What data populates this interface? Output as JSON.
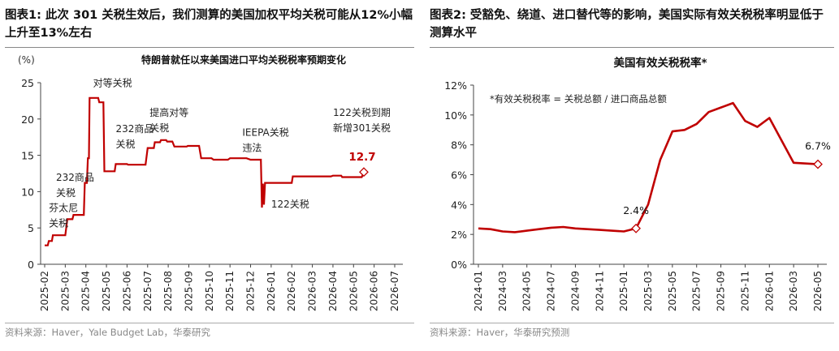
{
  "left": {
    "fig_title": "图表1:  此次 301 关税生效后，我们测算的美国加权平均关税可能从12%小幅上升至13%左右",
    "source": "资料来源：Haver，Yale Budget Lab，华泰研究",
    "chart_data": {
      "type": "line",
      "title": "特朗普就任以来美国进口平均关税税率预期变化",
      "ylabel": "(%)",
      "ylim": [
        0,
        25
      ],
      "yticks": [
        0,
        5,
        10,
        15,
        20,
        25
      ],
      "x_categories": [
        "2025-02",
        "2025-03",
        "2025-04",
        "2025-05",
        "2025-06",
        "2025-07",
        "2025-08",
        "2025-09",
        "2025-10",
        "2025-11",
        "2025-12",
        "2026-01",
        "2026-02",
        "2026-03",
        "2026-04",
        "2026-05",
        "2026-06",
        "2026-07"
      ],
      "series": [
        {
          "color": "#c00000",
          "points": [
            [
              0,
              2.6
            ],
            [
              0.15,
              2.6
            ],
            [
              0.2,
              3.2
            ],
            [
              0.35,
              3.2
            ],
            [
              0.4,
              4.0
            ],
            [
              1.0,
              4.0
            ],
            [
              1.1,
              6.2
            ],
            [
              1.35,
              6.2
            ],
            [
              1.4,
              6.8
            ],
            [
              1.9,
              6.8
            ],
            [
              1.95,
              11.2
            ],
            [
              2.05,
              11.2
            ],
            [
              2.1,
              14.6
            ],
            [
              2.15,
              14.6
            ],
            [
              2.18,
              22.9
            ],
            [
              2.6,
              22.9
            ],
            [
              2.65,
              22.3
            ],
            [
              2.85,
              22.3
            ],
            [
              2.9,
              12.8
            ],
            [
              3.4,
              12.8
            ],
            [
              3.45,
              13.8
            ],
            [
              4.0,
              13.8
            ],
            [
              4.05,
              13.7
            ],
            [
              4.9,
              13.7
            ],
            [
              5.0,
              16.0
            ],
            [
              5.3,
              16.0
            ],
            [
              5.35,
              16.8
            ],
            [
              5.6,
              16.8
            ],
            [
              5.65,
              17.1
            ],
            [
              5.9,
              17.1
            ],
            [
              5.95,
              16.9
            ],
            [
              6.2,
              16.9
            ],
            [
              6.3,
              16.2
            ],
            [
              6.9,
              16.2
            ],
            [
              6.95,
              16.3
            ],
            [
              7.5,
              16.3
            ],
            [
              7.6,
              14.6
            ],
            [
              8.1,
              14.6
            ],
            [
              8.2,
              14.4
            ],
            [
              8.9,
              14.4
            ],
            [
              9.0,
              14.6
            ],
            [
              9.8,
              14.6
            ],
            [
              10.0,
              14.4
            ],
            [
              10.5,
              14.4
            ],
            [
              10.55,
              7.8
            ],
            [
              10.6,
              11.1
            ],
            [
              10.65,
              8.2
            ],
            [
              10.7,
              11.2
            ],
            [
              12.0,
              11.2
            ],
            [
              12.05,
              12.1
            ],
            [
              13.9,
              12.1
            ],
            [
              14.0,
              12.2
            ],
            [
              14.4,
              12.2
            ],
            [
              14.45,
              12.0
            ],
            [
              15.4,
              12.0
            ],
            [
              15.5,
              12.7
            ]
          ]
        }
      ],
      "end_label": "12.7",
      "annotations": [
        {
          "lines": [
            "对等关税"
          ],
          "x": 2.35,
          "y": 24.5
        },
        {
          "lines": [
            "232商品",
            "关税"
          ],
          "x": 3.45,
          "y": 18.2
        },
        {
          "lines": [
            "提高对等",
            "关税"
          ],
          "x": 5.1,
          "y": 20.4
        },
        {
          "lines": [
            "232商品",
            "关税"
          ],
          "x": 0.55,
          "y": 11.5
        },
        {
          "lines": [
            "芬太尼",
            "关税"
          ],
          "x": 0.2,
          "y": 7.3
        },
        {
          "lines": [
            "IEEPA关税",
            "违法"
          ],
          "x": 9.6,
          "y": 17.7
        },
        {
          "lines": [
            "122关税"
          ],
          "x": 11.0,
          "y": 7.8
        },
        {
          "lines": [
            "122关税到期",
            "新增301关税"
          ],
          "x": 14.0,
          "y": 20.4
        }
      ]
    }
  },
  "right": {
    "fig_title": "图表2:  受豁免、绕道、进口替代等的影响，美国实际有效关税税率明显低于测算水平",
    "source": "资料来源：Haver，华泰研究预测",
    "chart_data": {
      "type": "line",
      "title": "美国有效关税税率*",
      "note": "*有效关税税率 = 关税总额 / 进口商品总额",
      "ylim": [
        0,
        12
      ],
      "yticks": [
        "0%",
        "2%",
        "4%",
        "6%",
        "8%",
        "10%",
        "12%"
      ],
      "x_labels": [
        "2024-01",
        "2024-03",
        "2024-05",
        "2024-07",
        "2024-09",
        "2024-11",
        "2025-01",
        "2025-03",
        "2025-05",
        "2025-07",
        "2025-09",
        "2025-11",
        "2026-01",
        "2026-03",
        "2026-05"
      ],
      "x_months": [
        "2024-01",
        "2024-02",
        "2024-03",
        "2024-04",
        "2024-05",
        "2024-06",
        "2024-07",
        "2024-08",
        "2024-09",
        "2024-10",
        "2024-11",
        "2024-12",
        "2025-01",
        "2025-02",
        "2025-03",
        "2025-04",
        "2025-05",
        "2025-06",
        "2025-07",
        "2025-08",
        "2025-09",
        "2025-10",
        "2025-11",
        "2025-12",
        "2026-01",
        "2026-02",
        "2026-03",
        "2026-04",
        "2026-05"
      ],
      "values": [
        2.4,
        2.35,
        2.2,
        2.15,
        2.25,
        2.35,
        2.45,
        2.5,
        2.4,
        2.35,
        2.3,
        2.25,
        2.2,
        2.4,
        4.0,
        7.0,
        8.9,
        9.0,
        9.4,
        10.2,
        10.5,
        10.8,
        9.6,
        9.2,
        9.8,
        8.3,
        6.8,
        6.75,
        6.7
      ],
      "color": "#c00000",
      "point_labels": [
        {
          "index": 13,
          "text": "2.4%"
        },
        {
          "index": 28,
          "text": "6.7%"
        }
      ]
    }
  }
}
